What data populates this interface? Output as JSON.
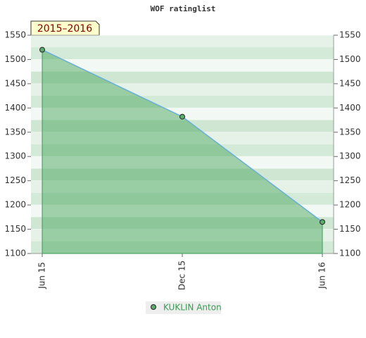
{
  "chart_data": {
    "type": "line",
    "title": "WOF ratinglist",
    "badge": "2015–2016",
    "categories": [
      "Jun 15",
      "Dec 15",
      "Jun 16"
    ],
    "series": [
      {
        "name": "KUKLIN Anton",
        "color": "#6aaedb",
        "values": [
          1520,
          1382,
          1165
        ]
      }
    ],
    "ylim": [
      1100,
      1550
    ],
    "yticks": [
      1100,
      1150,
      1200,
      1250,
      1300,
      1350,
      1400,
      1450,
      1500,
      1550
    ],
    "y2lim": [
      1100,
      1550
    ],
    "y2ticks": [
      1100,
      1150,
      1200,
      1250,
      1300,
      1350,
      1400,
      1450,
      1500,
      1550
    ],
    "grid": true
  }
}
